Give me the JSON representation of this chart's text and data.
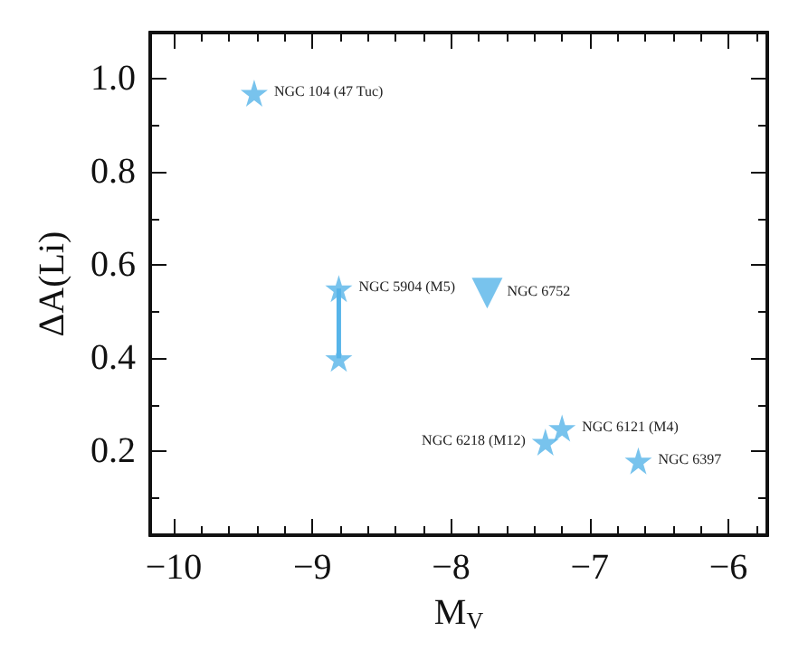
{
  "chart_data": {
    "type": "scatter",
    "xlabel": "M$_{V}$",
    "ylabel": "ΔA(Li)",
    "xlim": [
      -10.17,
      -5.72
    ],
    "ylim": [
      0.02,
      1.1
    ],
    "xticks": [
      {
        "value": -10,
        "label": "−10"
      },
      {
        "value": -9.8,
        "label": null
      },
      {
        "value": -9.6,
        "label": null
      },
      {
        "value": -9.4,
        "label": null
      },
      {
        "value": -9.2,
        "label": null
      },
      {
        "value": -9,
        "label": "−9"
      },
      {
        "value": -8.8,
        "label": null
      },
      {
        "value": -8.6,
        "label": null
      },
      {
        "value": -8.4,
        "label": null
      },
      {
        "value": -8.2,
        "label": null
      },
      {
        "value": -8,
        "label": "−8"
      },
      {
        "value": -7.8,
        "label": null
      },
      {
        "value": -7.6,
        "label": null
      },
      {
        "value": -7.4,
        "label": null
      },
      {
        "value": -7.2,
        "label": null
      },
      {
        "value": -7,
        "label": "−7"
      },
      {
        "value": -6.8,
        "label": null
      },
      {
        "value": -6.6,
        "label": null
      },
      {
        "value": -6.4,
        "label": null
      },
      {
        "value": -6.2,
        "label": null
      },
      {
        "value": -6,
        "label": "−6"
      },
      {
        "value": -5.8,
        "label": null
      }
    ],
    "yticks": [
      {
        "value": 0.1,
        "label": null
      },
      {
        "value": 0.2,
        "label": "0.2"
      },
      {
        "value": 0.3,
        "label": null
      },
      {
        "value": 0.4,
        "label": "0.4"
      },
      {
        "value": 0.5,
        "label": null
      },
      {
        "value": 0.6,
        "label": "0.6"
      },
      {
        "value": 0.7,
        "label": null
      },
      {
        "value": 0.8,
        "label": "0.8"
      },
      {
        "value": 0.9,
        "label": null
      },
      {
        "value": 1.0,
        "label": "1.0"
      }
    ],
    "grid": false,
    "series": [
      {
        "type": "line",
        "color": "#56b4e9",
        "marker": "none",
        "x": [
          -8.81,
          -8.81
        ],
        "values": [
          0.55,
          0.4
        ]
      },
      {
        "color": "#56b4e9",
        "marker": "star",
        "x": [
          -9.42,
          -8.81,
          -8.81,
          -7.2,
          -7.32,
          -6.65
        ],
        "values": [
          0.97,
          0.55,
          0.4,
          0.25,
          0.22,
          0.18
        ]
      },
      {
        "type": "scatter",
        "color": "#56b4e9",
        "marker": "triangle",
        "x": [
          -7.74
        ],
        "values": [
          0.54
        ]
      }
    ],
    "annotations": [
      {
        "text": "NGC 104 (47 Tuc)",
        "x": -9.42,
        "y": 0.97
      },
      {
        "text": "NGC 5904 (M5)",
        "x": -8.81,
        "y": 0.55
      },
      {
        "text": "NGC 6752",
        "x": -7.74,
        "y": 0.54
      },
      {
        "text": "NGC 6121 (M4)",
        "x": -7.2,
        "y": 0.25
      },
      {
        "text": "NGC 6218 (M12)",
        "x": -7.32,
        "y": 0.22
      },
      {
        "text": "NGC 6397",
        "x": -6.65,
        "y": 0.18
      }
    ]
  }
}
